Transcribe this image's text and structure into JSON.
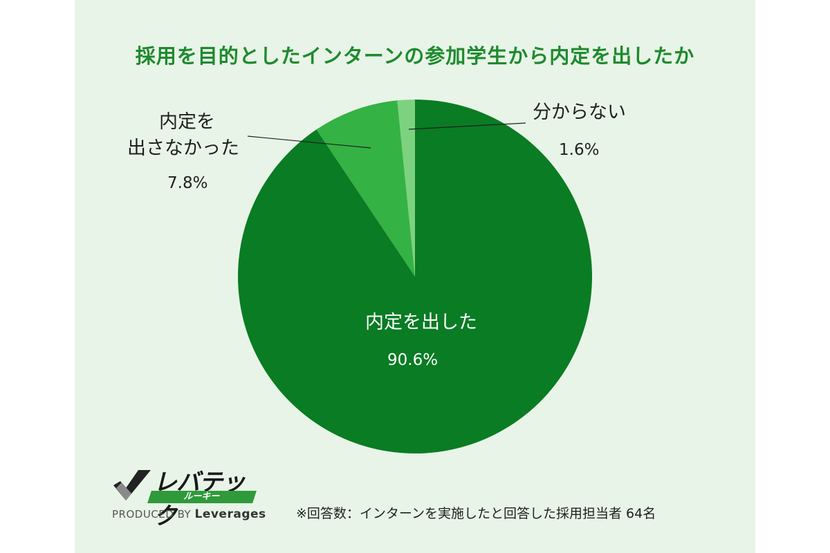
{
  "colors": {
    "title": "#1e8a2e",
    "series": [
      "#097c24",
      "#34b243",
      "#7dd27f"
    ],
    "panel_bg": "#e8f4e7"
  },
  "chart_data": {
    "type": "pie",
    "title": "採用を目的としたインターンの参加学生から内定を出したか",
    "slices": [
      {
        "label": "内定を出した",
        "value": 90.6,
        "value_label": "90.6%"
      },
      {
        "label_lines": [
          "内定を",
          "出さなかった"
        ],
        "value": 7.8,
        "value_label": "7.8%"
      },
      {
        "label": "分からない",
        "value": 1.6,
        "value_label": "1.6%"
      }
    ]
  },
  "brand": {
    "logo_text": "レバテック",
    "logo_sub": "ルーキー",
    "produced_prefix": "PRODUCED BY ",
    "produced_name": "Leverages"
  },
  "footnote": "※回答数：インターンを実施したと回答した採用担当者 64名"
}
